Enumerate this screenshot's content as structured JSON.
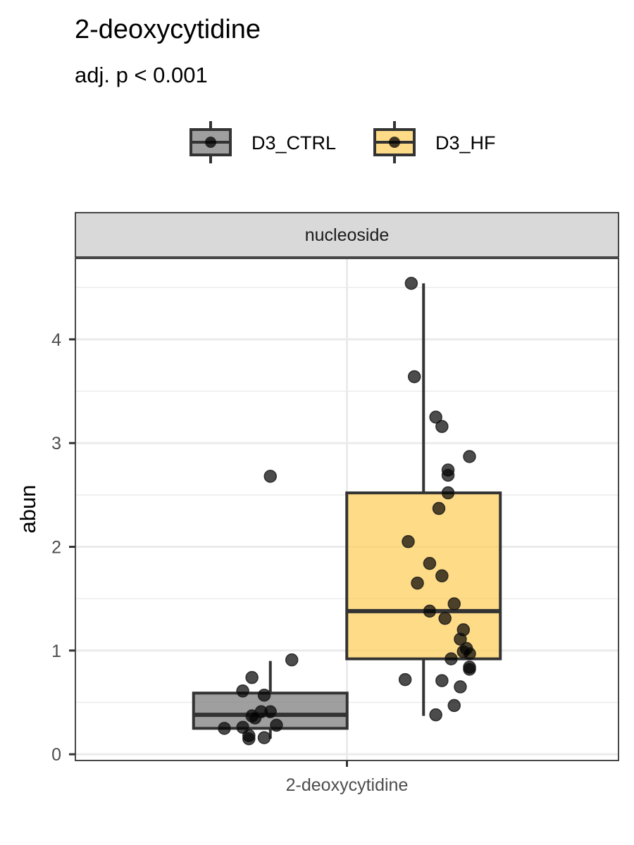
{
  "chart_data": {
    "type": "boxplot",
    "title": "2-deoxycytidine",
    "subtitle": "adj. p < 0.001",
    "facet_label": "nucleoside",
    "xlabel": "",
    "ylabel": "abun",
    "categories": [
      "2-deoxycytidine"
    ],
    "yticks": [
      0,
      1,
      2,
      3,
      4
    ],
    "ylim": [
      -0.06,
      4.78
    ],
    "grid": true,
    "legend": {
      "position": "top"
    },
    "series": [
      {
        "name": "D3_CTRL",
        "color": "#7f7f7f",
        "box": {
          "lower_whisker": 0.15,
          "q1": 0.25,
          "median": 0.38,
          "q3": 0.59,
          "upper_whisker": 0.9
        },
        "points": [
          {
            "x": -0.25,
            "y": 2.68
          },
          {
            "x": -0.18,
            "y": 0.91
          },
          {
            "x": -0.31,
            "y": 0.74
          },
          {
            "x": -0.34,
            "y": 0.61
          },
          {
            "x": -0.27,
            "y": 0.57
          },
          {
            "x": -0.28,
            "y": 0.41
          },
          {
            "x": -0.25,
            "y": 0.41
          },
          {
            "x": -0.31,
            "y": 0.37
          },
          {
            "x": -0.3,
            "y": 0.35
          },
          {
            "x": -0.23,
            "y": 0.28
          },
          {
            "x": -0.34,
            "y": 0.26
          },
          {
            "x": -0.4,
            "y": 0.25
          },
          {
            "x": -0.32,
            "y": 0.18
          },
          {
            "x": -0.27,
            "y": 0.16
          },
          {
            "x": -0.32,
            "y": 0.15
          }
        ]
      },
      {
        "name": "D3_HF",
        "color": "#fdcf5f",
        "box": {
          "lower_whisker": 0.37,
          "q1": 0.92,
          "median": 1.38,
          "q3": 2.52,
          "upper_whisker": 4.54
        },
        "points": [
          {
            "x": 0.21,
            "y": 4.54
          },
          {
            "x": 0.22,
            "y": 3.64
          },
          {
            "x": 0.29,
            "y": 3.25
          },
          {
            "x": 0.31,
            "y": 3.16
          },
          {
            "x": 0.4,
            "y": 2.87
          },
          {
            "x": 0.33,
            "y": 2.74
          },
          {
            "x": 0.33,
            "y": 2.69
          },
          {
            "x": 0.33,
            "y": 2.52
          },
          {
            "x": 0.3,
            "y": 2.37
          },
          {
            "x": 0.2,
            "y": 2.05
          },
          {
            "x": 0.27,
            "y": 1.84
          },
          {
            "x": 0.31,
            "y": 1.72
          },
          {
            "x": 0.23,
            "y": 1.65
          },
          {
            "x": 0.35,
            "y": 1.45
          },
          {
            "x": 0.27,
            "y": 1.38
          },
          {
            "x": 0.32,
            "y": 1.31
          },
          {
            "x": 0.38,
            "y": 1.2
          },
          {
            "x": 0.37,
            "y": 1.11
          },
          {
            "x": 0.39,
            "y": 1.02
          },
          {
            "x": 0.38,
            "y": 0.99
          },
          {
            "x": 0.4,
            "y": 0.97
          },
          {
            "x": 0.34,
            "y": 0.92
          },
          {
            "x": 0.4,
            "y": 0.84
          },
          {
            "x": 0.4,
            "y": 0.82
          },
          {
            "x": 0.19,
            "y": 0.72
          },
          {
            "x": 0.31,
            "y": 0.71
          },
          {
            "x": 0.37,
            "y": 0.65
          },
          {
            "x": 0.35,
            "y": 0.47
          },
          {
            "x": 0.29,
            "y": 0.38
          }
        ]
      }
    ]
  }
}
